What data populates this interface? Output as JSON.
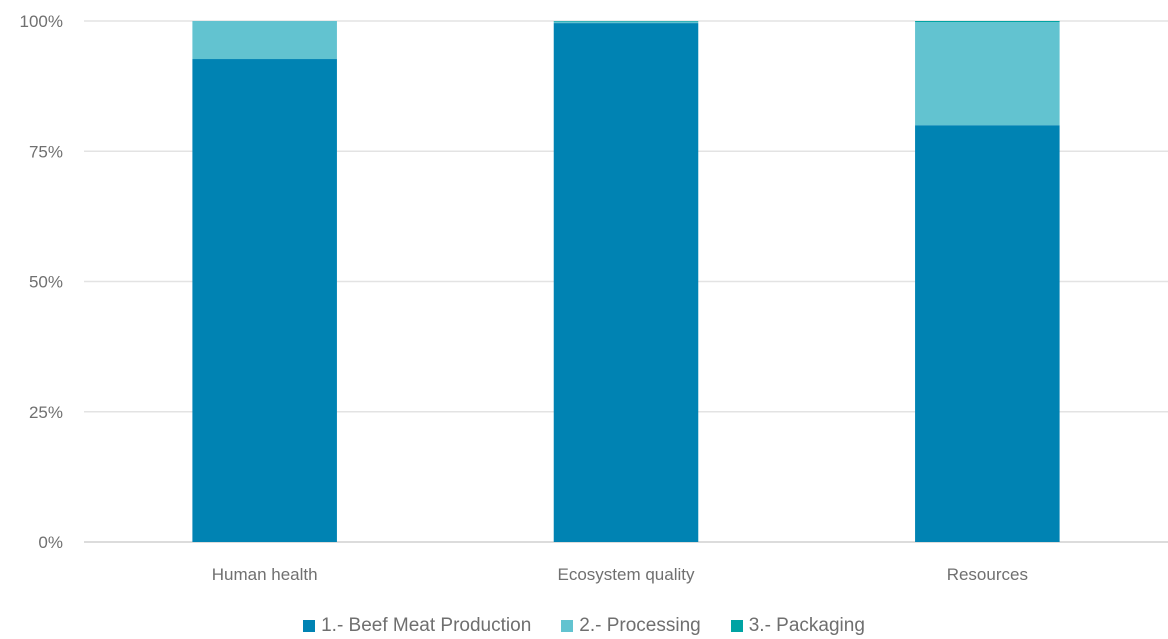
{
  "chart_data": {
    "type": "bar",
    "stacked": true,
    "percent": true,
    "categories": [
      "Human health",
      "Ecosystem quality",
      "Resources"
    ],
    "series": [
      {
        "name": "1.- Beef Meat Production",
        "color": "#0083b3",
        "values": [
          92.7,
          99.6,
          80.0
        ]
      },
      {
        "name": "2.- Processing",
        "color": "#62c3d0",
        "values": [
          7.3,
          0.3,
          19.8
        ]
      },
      {
        "name": "3.- Packaging",
        "color": "#00a3a3",
        "values": [
          0.0,
          0.1,
          0.2
        ]
      }
    ],
    "y_ticks": [
      "0%",
      "25%",
      "50%",
      "75%",
      "100%"
    ],
    "ylim": [
      0,
      100
    ],
    "grid": true,
    "legend_position": "bottom",
    "title": "",
    "xlabel": "",
    "ylabel": ""
  }
}
